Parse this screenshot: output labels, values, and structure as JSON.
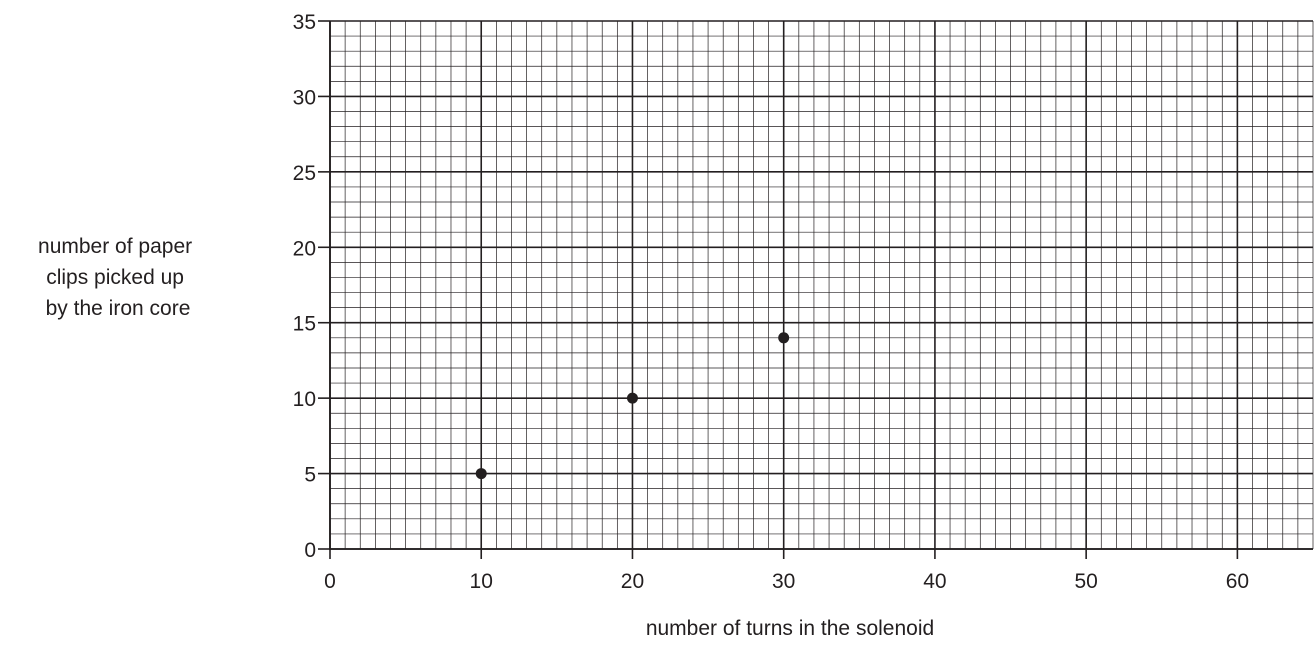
{
  "chart_data": {
    "type": "scatter",
    "title": "",
    "xlabel": "number of turns in the solenoid",
    "ylabel_lines": [
      "number of paper",
      "clips picked up",
      "by the iron core"
    ],
    "xlim": [
      0,
      65
    ],
    "ylim": [
      0,
      35
    ],
    "x_ticks": [
      0,
      10,
      20,
      30,
      40,
      50,
      60
    ],
    "y_ticks": [
      0,
      5,
      10,
      15,
      20,
      25,
      30,
      35
    ],
    "x_minor_step": 1,
    "y_minor_step": 1,
    "grid": true,
    "series": [
      {
        "points": [
          {
            "x": 10,
            "y": 5
          },
          {
            "x": 20,
            "y": 10
          },
          {
            "x": 30,
            "y": 14
          }
        ]
      }
    ],
    "colors": {
      "ink": "#231f20",
      "background": "#ffffff"
    }
  }
}
